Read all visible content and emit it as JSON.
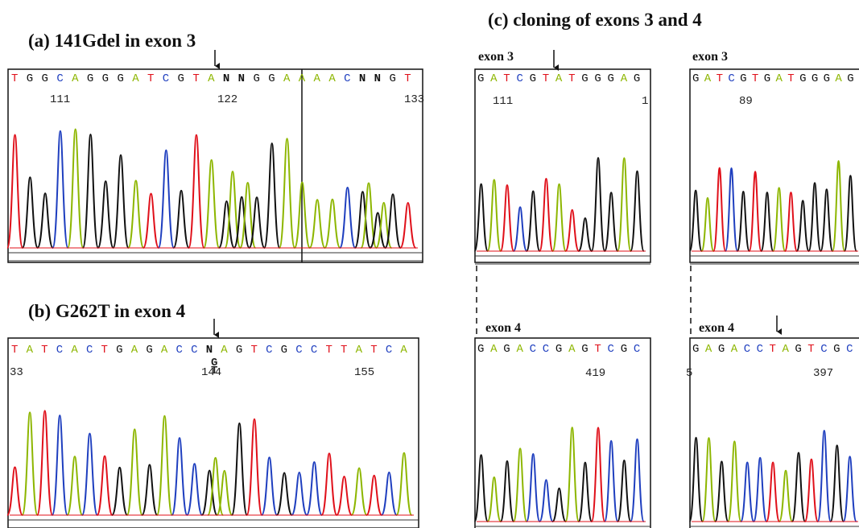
{
  "panels": [
    {
      "title": "(a) 141Gdel in exon 3",
      "sequence": "TGGCAGGGATCGTANNGGAAAACNNGT",
      "positions": [
        "111",
        "122",
        "133"
      ]
    },
    {
      "title": "(b) G262T in exon 4",
      "sequence": "TATCACTGAGACCNAGTCGCCTTATCA",
      "positions": [
        "33",
        "144",
        "155"
      ],
      "alleles": [
        "G",
        "T"
      ]
    }
  ],
  "cloning": {
    "title": "(c) cloning of exons 3 and 4",
    "clones": [
      {
        "label": "exon 3",
        "sequence": "GATCGTATGGGAG",
        "positions": [
          "111",
          "1"
        ]
      },
      {
        "label": "exon 3",
        "sequence": "GATCGTGATGGGAG",
        "positions": [
          "89"
        ]
      },
      {
        "label": "exon 4",
        "sequence": "GAGACCGAGTCGC",
        "positions": [
          "419"
        ]
      },
      {
        "label": "exon 4",
        "sequence": "GAGACCTAGTCGC",
        "positions": [
          "5",
          "397"
        ]
      }
    ]
  }
}
